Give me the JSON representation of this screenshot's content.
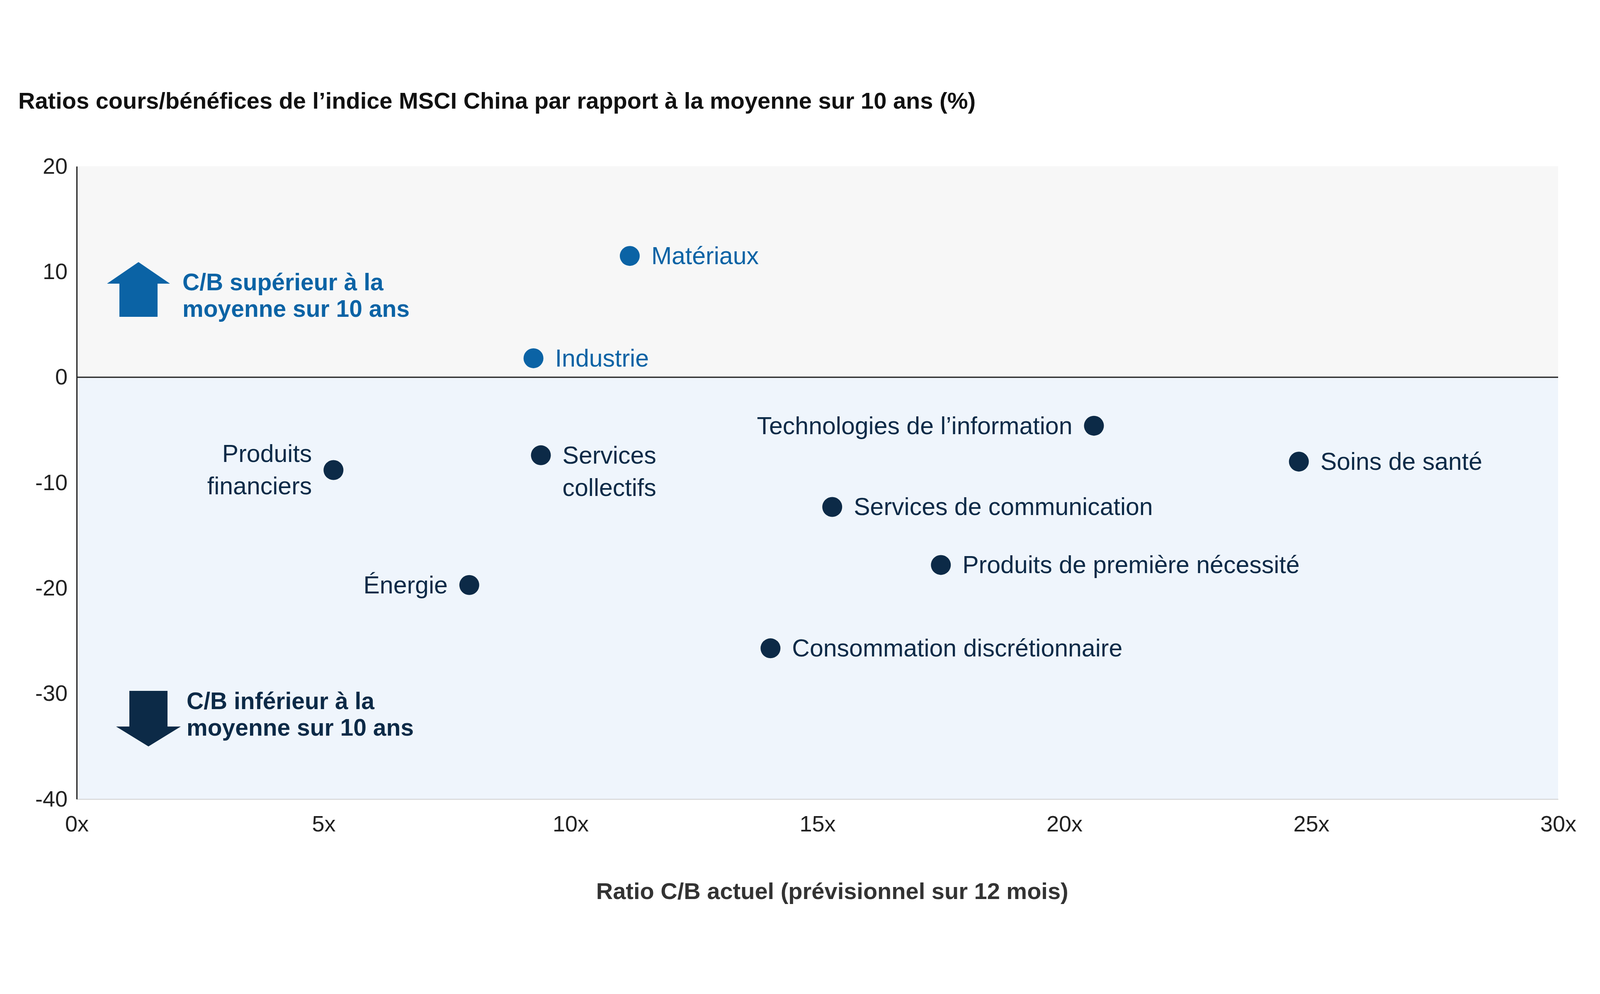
{
  "chart_data": {
    "type": "scatter",
    "title": "Ratios cours/bénéfices de l’indice MSCI China par rapport à la moyenne sur 10 ans (%)",
    "x_label": "Ratio C/B actuel (prévisionnel sur 12 mois)",
    "labels": [
      [
        "Matériaux"
      ],
      [
        "Industrie"
      ],
      [
        "Produits",
        "financiers"
      ],
      [
        "Services",
        "collectifs"
      ],
      [
        "Énergie"
      ],
      [
        "Technologies de l’information"
      ],
      [
        "Soins de santé"
      ],
      [
        "Services de communication"
      ],
      [
        "Produits de première nécessité"
      ],
      [
        "Consommation discrétionnaire"
      ]
    ],
    "x": [
      11.2,
      9.25,
      5.2,
      9.4,
      7.95,
      20.6,
      24.75,
      15.3,
      17.5,
      14.05
    ],
    "values": [
      11.5,
      1.8,
      -8.8,
      -7.4,
      -19.7,
      -4.6,
      -8.0,
      -12.3,
      -17.8,
      -25.7
    ],
    "colors": [
      "#0b63a5",
      "#0b63a5",
      "#0c2a47",
      "#0c2a47",
      "#0c2a47",
      "#0c2a47",
      "#0c2a47",
      "#0c2a47",
      "#0c2a47",
      "#0c2a47"
    ],
    "xlim": [
      0,
      30
    ],
    "ylim": [
      -40,
      20
    ],
    "xticks": [
      {
        "value": 0,
        "label": "0x"
      },
      {
        "value": 5,
        "label": "5x"
      },
      {
        "value": 10,
        "label": "10x"
      },
      {
        "value": 15,
        "label": "15x"
      },
      {
        "value": 20,
        "label": "20x"
      },
      {
        "value": 25,
        "label": "25x"
      },
      {
        "value": 30,
        "label": "30x"
      }
    ],
    "yticks": [
      20,
      10,
      0,
      -10,
      -20,
      -30,
      -40
    ],
    "reference_line": 0,
    "annotations": [
      {
        "lines": [
          "C/B supérieur à la",
          "moyenne sur 10 ans"
        ],
        "color": "#0b63a5"
      },
      {
        "lines": [
          "C/B inférieur à la",
          "moyenne sur 10 ans"
        ],
        "color": "#0c2a47"
      }
    ],
    "grid": false
  }
}
